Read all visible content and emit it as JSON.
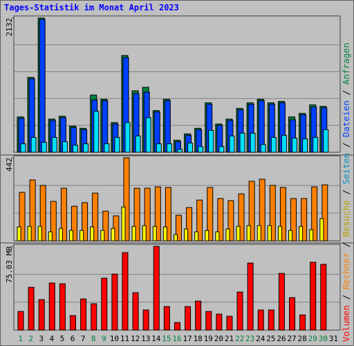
{
  "chart_data": [
    {
      "type": "bar",
      "title": "Tages-Statistik im Monat April 2023",
      "ylim": [
        0,
        2132
      ],
      "yticks": [
        2132
      ],
      "series": [
        {
          "name": "Anfragen",
          "color": "#008040",
          "values": [
            561,
            1189,
            2132,
            527,
            572,
            415,
            381,
            909,
            842,
            471,
            1537,
            976,
            1032,
            662,
            842,
            191,
            292,
            381,
            785,
            449,
            527,
            696,
            785,
            842,
            785,
            808,
            561,
            617,
            752,
            729,
            null
          ]
        },
        {
          "name": "Dateien",
          "color": "#0040ff",
          "values": [
            539,
            1167,
            2109,
            505,
            550,
            393,
            359,
            830,
            819,
            449,
            1503,
            931,
            954,
            640,
            819,
            168,
            269,
            359,
            763,
            426,
            505,
            673,
            763,
            819,
            763,
            785,
            516,
            595,
            718,
            707,
            null
          ]
        },
        {
          "name": "Seiten",
          "color": "#00e0ff",
          "values": [
            135,
            236,
            157,
            236,
            168,
            112,
            135,
            651,
            135,
            236,
            471,
            258,
            550,
            135,
            135,
            45,
            146,
            90,
            348,
            90,
            258,
            303,
            303,
            123,
            236,
            269,
            224,
            213,
            236,
            359,
            null
          ]
        }
      ]
    },
    {
      "type": "bar",
      "ylim": [
        0,
        442
      ],
      "yticks": [
        442
      ],
      "series": [
        {
          "name": "Rechner",
          "color": "#ff8000",
          "values": [
            258,
            324,
            295,
            210,
            280,
            184,
            203,
            254,
            158,
            133,
            442,
            280,
            280,
            287,
            284,
            136,
            177,
            217,
            284,
            225,
            214,
            250,
            317,
            328,
            295,
            284,
            225,
            225,
            287,
            298,
            null
          ]
        },
        {
          "name": "Besuche",
          "color": "#ffff00",
          "values": [
            74,
            77,
            77,
            48,
            66,
            55,
            55,
            74,
            55,
            66,
            180,
            77,
            81,
            77,
            74,
            33,
            63,
            48,
            55,
            48,
            63,
            77,
            81,
            81,
            81,
            77,
            55,
            77,
            59,
            118,
            null
          ]
        }
      ]
    },
    {
      "type": "bar",
      "ylim": [
        0,
        75.03
      ],
      "yticks": [
        {
          "value": 75.03,
          "label": "75.03 MB"
        }
      ],
      "categories": [
        "1",
        "2",
        "3",
        "4",
        "5",
        "6",
        "7",
        "8",
        "9",
        "10",
        "11",
        "12",
        "13",
        "14",
        "15",
        "16",
        "17",
        "18",
        "19",
        "20",
        "21",
        "22",
        "23",
        "24",
        "25",
        "26",
        "27",
        "28",
        "29",
        "30",
        "31"
      ],
      "category_colors": [
        "#008040",
        "#008040",
        "#000000",
        "#000000",
        "#000000",
        "#000000",
        "#000000",
        "#008040",
        "#008040",
        "#000000",
        "#000000",
        "#000000",
        "#000000",
        "#000000",
        "#008040",
        "#008040",
        "#000000",
        "#000000",
        "#000000",
        "#000000",
        "#000000",
        "#008040",
        "#008040",
        "#000000",
        "#000000",
        "#000000",
        "#000000",
        "#000000",
        "#008040",
        "#008040",
        "#000000"
      ],
      "series": [
        {
          "name": "Volumen",
          "color": "#ff0000",
          "values": [
            16.7,
            38.4,
            27.3,
            42.2,
            41.5,
            13.0,
            27.9,
            23.6,
            46.5,
            50.2,
            69.4,
            33.5,
            18.0,
            75.03,
            21.1,
            6.8,
            21.1,
            26.0,
            16.7,
            14.3,
            12.4,
            34.1,
            60.1,
            18.0,
            18.0,
            50.8,
            29.1,
            13.6,
            60.8,
            58.9,
            null
          ]
        }
      ]
    }
  ],
  "legend_separator": " / "
}
